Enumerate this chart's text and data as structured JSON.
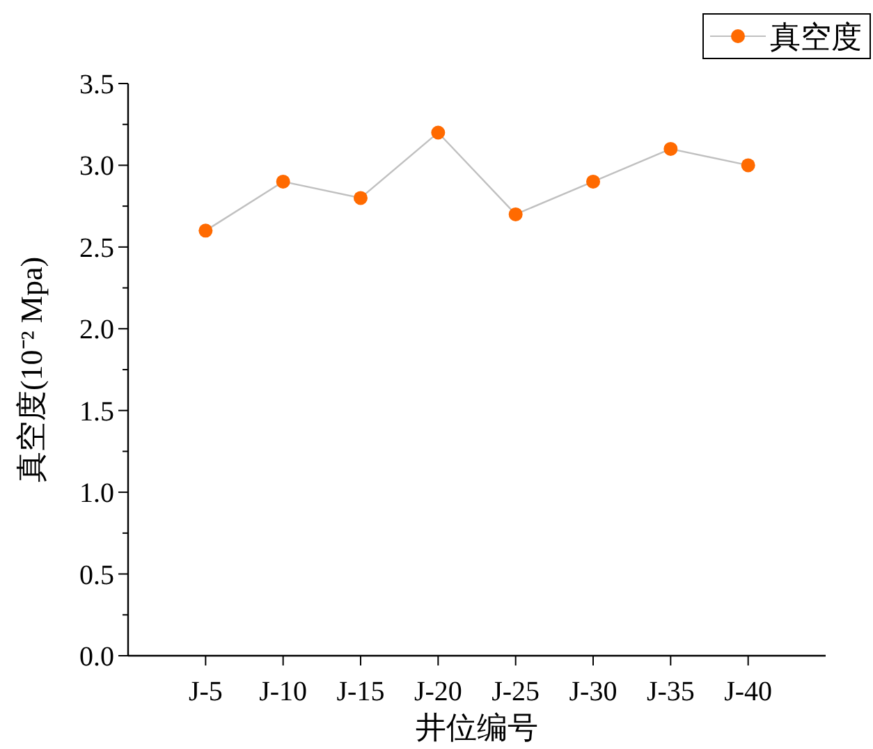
{
  "chart_data": {
    "type": "line",
    "xlabel": "井位编号",
    "ylabel": "真空度(10⁻² Mpa)",
    "categories": [
      "J-5",
      "J-10",
      "J-15",
      "J-20",
      "J-25",
      "J-30",
      "J-35",
      "J-40"
    ],
    "series": [
      {
        "name": "真空度",
        "color": "#c0c0c0",
        "colors": [
          "#ff6a00",
          "#ff6a00",
          "#ff6a00",
          "#ff6a00",
          "#ff6a00",
          "#ff6a00",
          "#ff6a00",
          "#ff6a00"
        ],
        "values": [
          2.6,
          2.9,
          2.8,
          3.2,
          2.7,
          2.9,
          3.1,
          3.0
        ]
      }
    ],
    "ylim": [
      0,
      3.5
    ],
    "yticks": [
      {
        "value": 0,
        "label": "0.0"
      },
      0.5,
      {
        "value": 1,
        "label": "1.0"
      },
      1.5,
      {
        "value": 2,
        "label": "2.0"
      },
      2.5,
      {
        "value": 3,
        "label": "3.0"
      },
      3.5
    ],
    "marker": "circle",
    "legend": "top right",
    "grid": false
  }
}
